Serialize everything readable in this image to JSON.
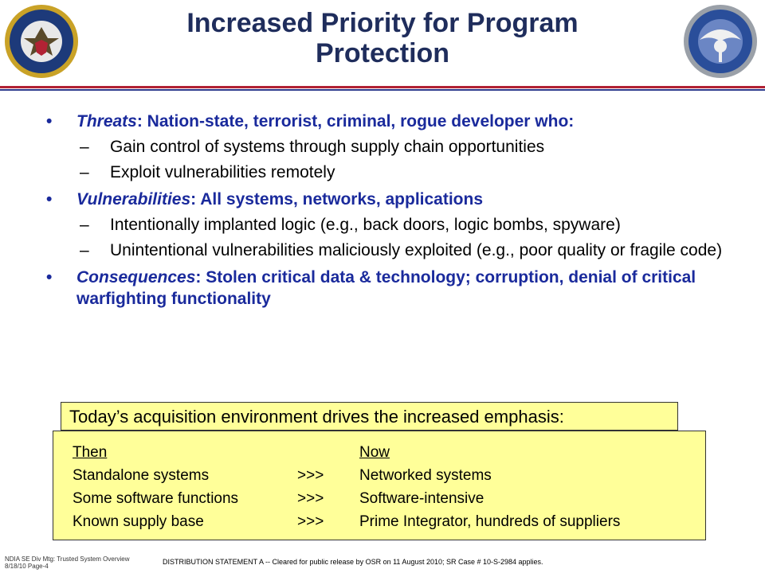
{
  "title_line1": "Increased Priority for Program",
  "title_line2": "Protection",
  "seals": {
    "left_icon": "department-of-defense-seal",
    "right_icon": "ddre-seal"
  },
  "colors": {
    "title": "#1f2d5c",
    "bullet_text": "#1a2a9c",
    "box_fill": "#ffff99",
    "rule_red": "#b22234",
    "rule_blue": "#2b3a8c"
  },
  "bullets": [
    {
      "marker": "•",
      "term": "Threats",
      "rest": ": Nation-state, terrorist, criminal, rogue developer who:",
      "subs": [
        "Gain control of systems through supply chain opportunities",
        "Exploit vulnerabilities remotely"
      ]
    },
    {
      "marker": "•",
      "term": "Vulnerabilities",
      "rest": ": All systems, networks, applications",
      "subs": [
        "Intentionally implanted logic (e.g., back doors, logic bombs, spyware)",
        "Unintentional vulnerabilities maliciously exploited (e.g., poor quality or fragile code)"
      ]
    },
    {
      "marker": "•",
      "term": "Consequences",
      "rest": ": Stolen critical data & technology; corruption, denial of critical warfighting functionality",
      "subs": []
    }
  ],
  "sub_marker": "–",
  "box": {
    "heading": "Today’s acquisition environment drives the increased emphasis:",
    "then_label": "Then",
    "now_label": "Now",
    "rows": [
      {
        "then": "Standalone systems",
        "arrow": ">>>",
        "now": "Networked systems"
      },
      {
        "then": "Some software functions",
        "arrow": ">>>",
        "now": "Software-intensive"
      },
      {
        "then": "Known supply base",
        "arrow": ">>>",
        "now": "Prime Integrator, hundreds of suppliers"
      }
    ]
  },
  "footer": {
    "left_line1": "NDIA SE Div Mtg: Trusted System Overview",
    "left_line2": "8/18/10 Page-4",
    "center": "DISTRIBUTION STATEMENT A -- Cleared for public release by OSR on 11 August 2010; SR Case # 10-S-2984 applies."
  }
}
